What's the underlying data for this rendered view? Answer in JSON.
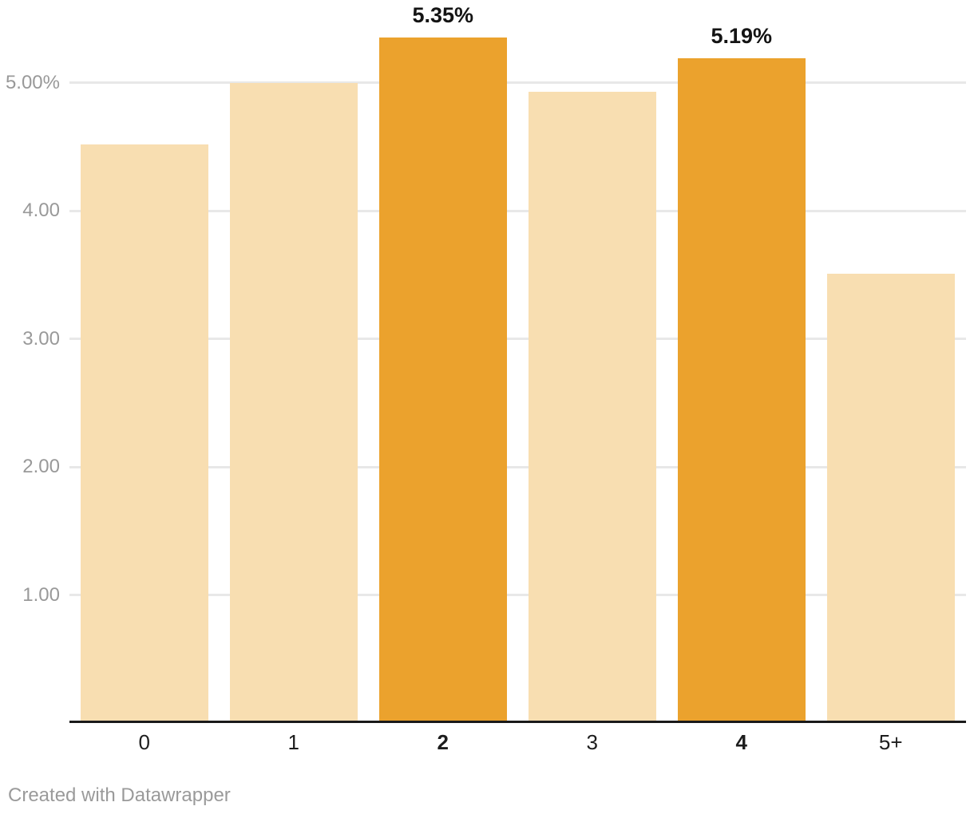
{
  "footer": {
    "credit": "Created with Datawrapper"
  },
  "chart_data": {
    "type": "bar",
    "categories": [
      "0",
      "1",
      "2",
      "3",
      "4",
      "5+"
    ],
    "values": [
      4.52,
      5.0,
      5.35,
      4.93,
      5.19,
      3.51
    ],
    "highlighted": [
      false,
      false,
      true,
      false,
      true,
      false
    ],
    "bar_labels": [
      "",
      "",
      "5.35%",
      "",
      "5.19%",
      ""
    ],
    "y_ticks": [
      {
        "label": "5.00%",
        "value": 5
      },
      {
        "label": "4.00",
        "value": 4
      },
      {
        "label": "3.00",
        "value": 3
      },
      {
        "label": "2.00",
        "value": 2
      },
      {
        "label": "1.00",
        "value": 1
      }
    ],
    "title": "",
    "xlabel": "",
    "ylabel": "",
    "ylim": [
      0,
      5.6
    ],
    "grid": true,
    "legend": false,
    "colors": {
      "bar": "#F8DEB1",
      "bar_highlight": "#EBA22D",
      "gridline": "#E8E8E8",
      "axis_line": "#1A1A1A",
      "y_tick_text": "#999999",
      "x_tick_text": "#1D1D1D",
      "value_label_text": "#141414",
      "credit_text": "#9A9A9A"
    }
  }
}
